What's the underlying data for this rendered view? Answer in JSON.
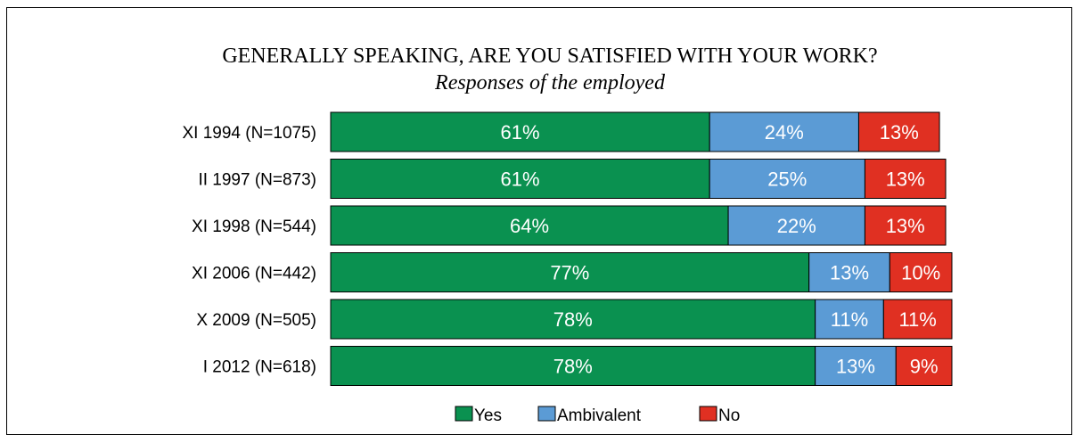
{
  "chart_data": {
    "type": "bar",
    "orientation": "horizontal",
    "stacked": true,
    "title": "GENERALLY SPEAKING, ARE YOU SATISFIED WITH YOUR WORK?",
    "subtitle": "Responses of the employed",
    "categories": [
      "XI 1994 (N=1075)",
      "II 1997 (N=873)",
      "XI 1998 (N=544)",
      "XI 2006 (N=442)",
      "X 2009 (N=505)",
      "I 2012 (N=618)"
    ],
    "series": [
      {
        "name": "Yes",
        "color": "#0a9150",
        "values": [
          61,
          61,
          64,
          77,
          78,
          78
        ]
      },
      {
        "name": "Ambivalent",
        "color": "#5b9bd5",
        "values": [
          24,
          25,
          22,
          13,
          11,
          13
        ]
      },
      {
        "name": "No",
        "color": "#e03022",
        "values": [
          13,
          13,
          13,
          10,
          11,
          9
        ]
      }
    ],
    "value_suffix": "%",
    "xlim": [
      0,
      100
    ],
    "grid": false,
    "legend_position": "bottom"
  }
}
